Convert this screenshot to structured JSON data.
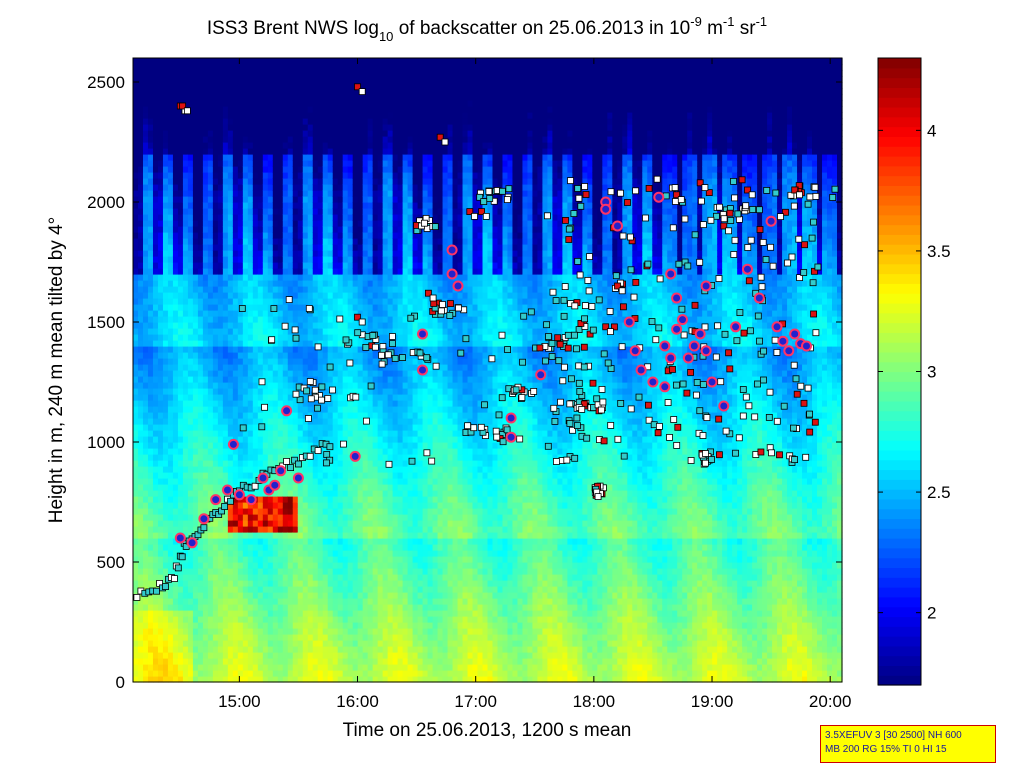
{
  "chart_data": {
    "type": "heatmap",
    "title_parts": {
      "a": "ISS3 Brent NWS log",
      "sub": "10",
      "b": " of backscatter on 25.06.2013 in 10",
      "exp1": "-9",
      "c": " m",
      "exp2": "-1",
      "d": " sr",
      "exp3": "-1"
    },
    "xlabel": "Time on 25.06.2013, 1200 s mean",
    "ylabel": "Height in m, 240 m mean tilted by 4°",
    "x_range_hours": [
      14.1,
      20.1
    ],
    "y_range_m": [
      0,
      2600
    ],
    "x_ticks": [
      {
        "value": 15,
        "label": "15:00"
      },
      {
        "value": 16,
        "label": "16:00"
      },
      {
        "value": 17,
        "label": "17:00"
      },
      {
        "value": 18,
        "label": "18:00"
      },
      {
        "value": 19,
        "label": "19:00"
      },
      {
        "value": 20,
        "label": "20:00"
      }
    ],
    "y_ticks": [
      {
        "value": 0,
        "label": "0"
      },
      {
        "value": 500,
        "label": "500"
      },
      {
        "value": 1000,
        "label": "1000"
      },
      {
        "value": 1500,
        "label": "1500"
      },
      {
        "value": 2000,
        "label": "2000"
      },
      {
        "value": 2500,
        "label": "2500"
      }
    ],
    "colorbar": {
      "range": [
        1.7,
        4.3
      ],
      "colormap": "jet",
      "ticks": [
        {
          "value": 2,
          "label": "2"
        },
        {
          "value": 2.5,
          "label": "2.5"
        },
        {
          "value": 3,
          "label": "3"
        },
        {
          "value": 3.5,
          "label": "3.5"
        },
        {
          "value": 4,
          "label": "4"
        }
      ]
    },
    "colors": {
      "marker_cyan": "#33cccc",
      "marker_white": "#ffffff",
      "marker_red": "#dd1111",
      "circle_fill": "#2222cc",
      "circle_edge": "#ff3366"
    },
    "info_lines": [
      "3.5XEFUV 3 [30 2500] NH 600",
      "MB 200 RG 15% TI 0 HI 15"
    ]
  }
}
